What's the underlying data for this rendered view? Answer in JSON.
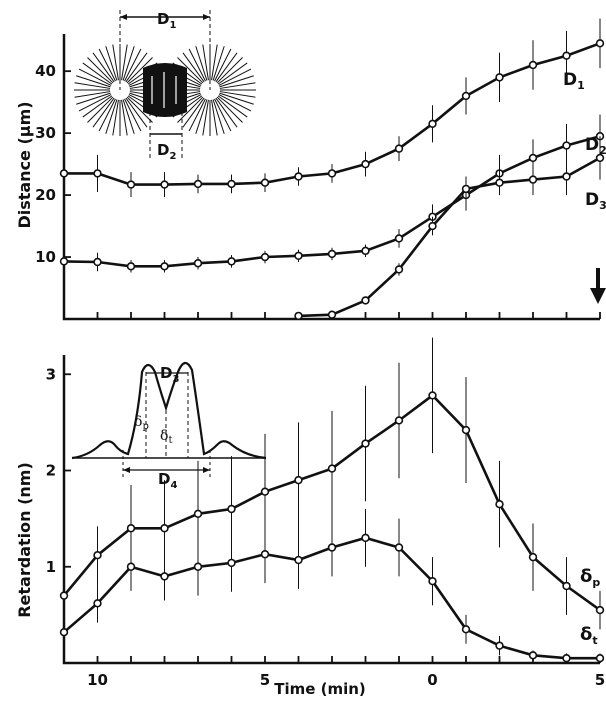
{
  "chart_data": [
    {
      "type": "line",
      "xlabel": "",
      "ylabel": "Distance (μm)",
      "xlim": [
        11,
        -5
      ],
      "ylim": [
        0,
        46
      ],
      "yticks": [
        10,
        20,
        30,
        40
      ],
      "ytick_labels": [
        "10",
        "20",
        "30",
        "40"
      ],
      "series": [
        {
          "name": "D1",
          "name_main": "D",
          "name_sub": "1",
          "x": [
            11,
            10,
            9,
            8,
            7,
            6,
            5,
            4,
            3,
            2,
            1,
            0,
            -1,
            -2,
            -3,
            -4,
            -5
          ],
          "y": [
            23.5,
            23.5,
            21.7,
            21.7,
            21.8,
            21.8,
            22,
            23,
            23.5,
            25,
            27.5,
            31.5,
            36,
            39,
            41,
            42.5,
            44.5
          ],
          "err": [
            3,
            3,
            2,
            2,
            1.5,
            1.5,
            1.5,
            1.5,
            1.5,
            2,
            2,
            3,
            3,
            4,
            4,
            4,
            4
          ]
        },
        {
          "name": "D2",
          "name_main": "D",
          "name_sub": "2",
          "x": [
            11,
            10,
            9,
            8,
            7,
            6,
            5,
            4,
            3,
            2,
            1,
            0,
            -1,
            -2,
            -3,
            -4,
            -5
          ],
          "y": [
            9.3,
            9.2,
            8.5,
            8.5,
            9,
            9.3,
            10,
            10.2,
            10.5,
            11,
            13,
            16.5,
            20,
            23.5,
            26,
            28,
            29.5
          ],
          "err": [
            1.5,
            1.5,
            1,
            1,
            1,
            1,
            1,
            1,
            1,
            1,
            1.5,
            2,
            2.5,
            3,
            3,
            3.5,
            3.5
          ]
        },
        {
          "name": "D3",
          "name_main": "D",
          "name_sub": "3",
          "x": [
            4,
            3,
            2,
            1,
            0,
            -1,
            -2,
            -3,
            -4,
            -5
          ],
          "y": [
            0.5,
            0.7,
            3,
            8,
            15,
            21,
            22,
            22.5,
            23,
            26
          ],
          "err": [
            0,
            0,
            0.5,
            1,
            1.5,
            2,
            2,
            2.5,
            3,
            3.5
          ]
        }
      ],
      "annotations": {
        "schematic_label_top": "D1",
        "schematic_label_bottom": "D2",
        "label_main": "D",
        "label_sub_top": "1",
        "label_sub_bottom": "2",
        "arrow": "down arrow at right edge"
      }
    },
    {
      "type": "line",
      "xlabel": "Time (min)",
      "ylabel": "Retardation (nm)",
      "xlim": [
        11,
        -5
      ],
      "ylim": [
        0,
        3.2
      ],
      "xticks": [
        10,
        5,
        0,
        -5
      ],
      "xtick_labels": [
        "10",
        "5",
        "0",
        "5"
      ],
      "yticks": [
        1,
        2,
        3
      ],
      "ytick_labels": [
        "1",
        "2",
        "3"
      ],
      "series": [
        {
          "name": "δp",
          "name_main": "δ",
          "name_sub": "p",
          "x": [
            11,
            10,
            9,
            8,
            7,
            6,
            5,
            4,
            3,
            2,
            1,
            0,
            -1,
            -2,
            -3,
            -4,
            -5
          ],
          "y": [
            0.7,
            1.12,
            1.4,
            1.4,
            1.55,
            1.6,
            1.78,
            1.9,
            2.02,
            2.28,
            2.52,
            2.78,
            2.42,
            1.65,
            1.1,
            0.8,
            0.55
          ],
          "err": [
            0.15,
            0.3,
            0.45,
            0.5,
            0.55,
            0.55,
            0.6,
            0.6,
            0.6,
            0.6,
            0.6,
            0.6,
            0.55,
            0.45,
            0.35,
            0.3,
            0.2
          ]
        },
        {
          "name": "δt",
          "name_main": "δ",
          "name_sub": "t",
          "x": [
            11,
            10,
            9,
            8,
            7,
            6,
            5,
            4,
            3,
            2,
            1,
            0,
            -1,
            -2,
            -3,
            -4,
            -5
          ],
          "y": [
            0.32,
            0.62,
            1.0,
            0.9,
            1.0,
            1.04,
            1.13,
            1.07,
            1.2,
            1.3,
            1.2,
            0.85,
            0.35,
            0.18,
            0.08,
            0.05,
            0.05
          ],
          "err": [
            0.15,
            0.2,
            0.25,
            0.25,
            0.3,
            0.3,
            0.3,
            0.3,
            0.3,
            0.3,
            0.3,
            0.25,
            0.15,
            0.1,
            0.05,
            0.05,
            0.05
          ]
        }
      ],
      "inset_labels": {
        "main_D": "D",
        "sub_3": "3",
        "sub_4": "4",
        "main_delta": "δ",
        "sub_p": "p",
        "sub_t": "t"
      }
    }
  ]
}
